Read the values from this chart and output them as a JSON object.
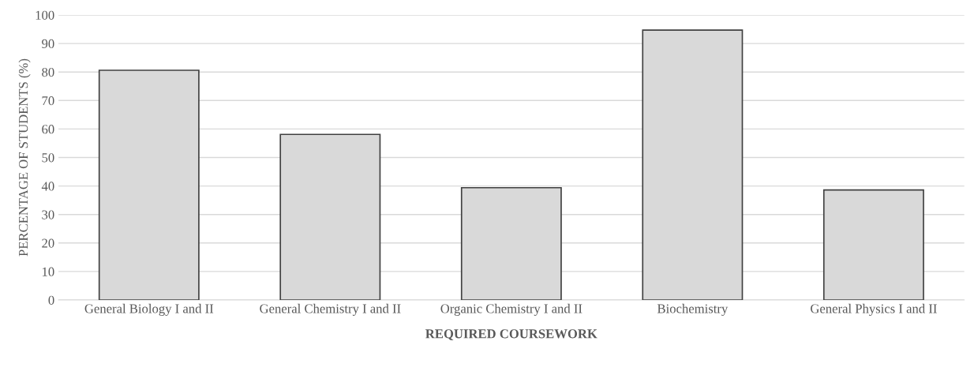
{
  "chart_data": {
    "type": "bar",
    "categories": [
      "General Biology I and II",
      "General Chemistry I and II",
      "Organic Chemistry I and II",
      "Biochemistry",
      "General Physics I and II"
    ],
    "values": [
      80.6,
      58.1,
      39.4,
      94.7,
      38.6
    ],
    "color": "#d9d9d9",
    "xlabel": "REQUIRED COURSEWORK",
    "ylabel": "PERCENTAGE OF STUDENTS (%)",
    "ylim": [
      0,
      100
    ],
    "yticks": [
      0,
      10,
      20,
      30,
      40,
      50,
      60,
      70,
      80,
      90,
      100
    ],
    "grid": "y"
  }
}
